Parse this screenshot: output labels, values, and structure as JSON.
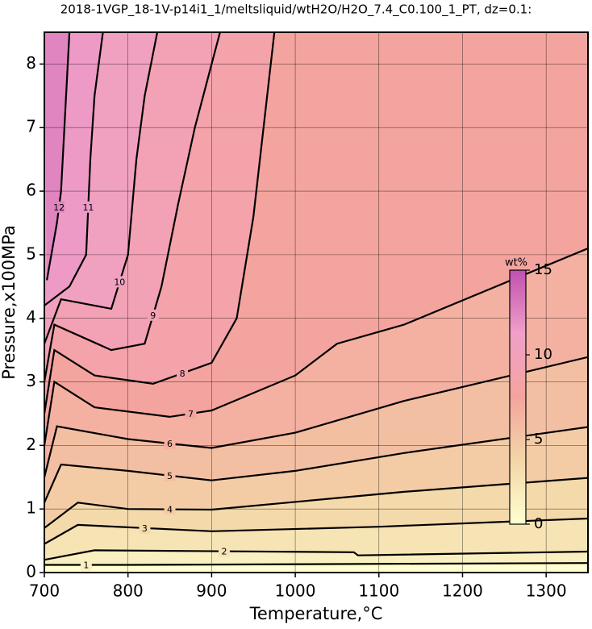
{
  "chart_data": {
    "type": "contour",
    "title": "2018-1VGP_18-1V-p14i1_1/meltsliquid/wtH2O/H2O_7.4_C0.100_1_PT, dz=0.1:",
    "x_label": "Temperature,°C",
    "y_label": "Pressure,x100MPa",
    "xlim": [
      700,
      1350
    ],
    "ylim": [
      0,
      8.5
    ],
    "xticks": [
      700,
      800,
      900,
      1000,
      1100,
      1200,
      1300
    ],
    "yticks": [
      0,
      1,
      2,
      3,
      4,
      5,
      6,
      7,
      8
    ],
    "grid": true,
    "colorbar": {
      "label": "wt%",
      "clim": [
        0,
        15
      ],
      "ticks": [
        0,
        5,
        10,
        15
      ],
      "colormap": [
        "#ffffd0",
        "#f3d6a8",
        "#f4a49e",
        "#f0a0c8",
        "#c050b0"
      ]
    },
    "contours": [
      {
        "level": 1,
        "x": [
          700,
          800,
          1350
        ],
        "y": [
          0.12,
          0.12,
          0.15
        ]
      },
      {
        "level": 2,
        "x": [
          700,
          760,
          1070,
          1075,
          1350
        ],
        "y": [
          0.2,
          0.35,
          0.32,
          0.27,
          0.33
        ]
      },
      {
        "level": 3,
        "x": [
          700,
          740,
          900,
          1100,
          1350
        ],
        "y": [
          0.45,
          0.75,
          0.65,
          0.72,
          0.85
        ]
      },
      {
        "level": 4,
        "x": [
          700,
          740,
          800,
          900,
          1130,
          1350
        ],
        "y": [
          0.7,
          1.1,
          1.0,
          0.99,
          1.27,
          1.49
        ]
      },
      {
        "level": 5,
        "x": [
          700,
          720,
          800,
          900,
          1000,
          1130,
          1350
        ],
        "y": [
          1.1,
          1.7,
          1.6,
          1.45,
          1.6,
          1.88,
          2.29
        ]
      },
      {
        "level": 6,
        "x": [
          700,
          715,
          800,
          900,
          1000,
          1130,
          1350
        ],
        "y": [
          1.5,
          2.3,
          2.1,
          1.96,
          2.2,
          2.7,
          3.39
        ]
      },
      {
        "level": 7,
        "x": [
          700,
          712,
          760,
          850,
          900,
          1000,
          1050,
          1130,
          1350
        ],
        "y": [
          2.0,
          3.0,
          2.6,
          2.45,
          2.55,
          3.1,
          3.6,
          3.9,
          5.1
        ]
      },
      {
        "level": 8,
        "x": [
          700,
          712,
          760,
          830,
          900,
          930,
          950,
          975
        ],
        "y": [
          2.5,
          3.5,
          3.1,
          2.97,
          3.3,
          4.0,
          5.6,
          8.5
        ]
      },
      {
        "level": 9,
        "x": [
          700,
          712,
          780,
          820,
          840,
          860,
          880,
          910
        ],
        "y": [
          3.0,
          3.9,
          3.5,
          3.6,
          4.5,
          5.8,
          7.0,
          8.5
        ]
      },
      {
        "level": 10,
        "x": [
          700,
          720,
          780,
          800,
          810,
          820,
          835
        ],
        "y": [
          3.6,
          4.3,
          4.15,
          5.0,
          6.5,
          7.5,
          8.5
        ]
      },
      {
        "level": 11,
        "x": [
          700,
          730,
          750,
          755,
          760,
          770
        ],
        "y": [
          4.2,
          4.5,
          5.0,
          6.5,
          7.5,
          8.5
        ]
      },
      {
        "level": 12,
        "x": [
          703,
          715,
          720,
          730
        ],
        "y": [
          4.6,
          5.5,
          6.0,
          8.5
        ]
      }
    ]
  }
}
